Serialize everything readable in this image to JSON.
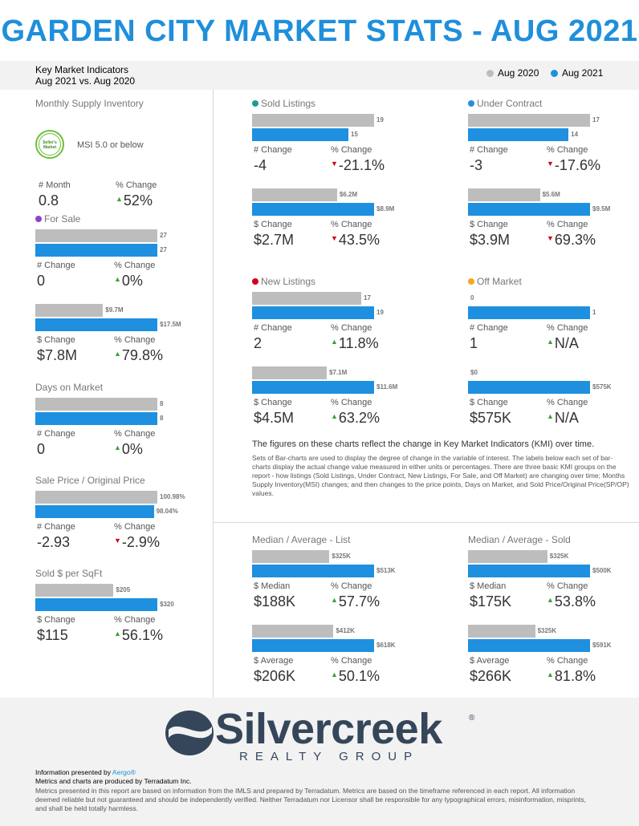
{
  "title": "GARDEN CITY MARKET STATS - AUG 2021",
  "header": {
    "line1": "Key Market Indicators",
    "line2": "Aug 2021 vs. Aug 2020"
  },
  "legend": [
    {
      "label": "Aug 2020",
      "color": "#bdbdbd"
    },
    {
      "label": "Aug 2021",
      "color": "#1e90df"
    }
  ],
  "msi": {
    "title": "Monthly Supply Inventory",
    "badge": "Seller's Market",
    "badge_text": "MSI 5.0 or below",
    "labels": [
      "# Month",
      "% Change"
    ],
    "values": [
      "0.8",
      "52%"
    ],
    "dirs": [
      "",
      "up"
    ]
  },
  "chart_data": [
    {
      "type": "bar",
      "title": "For Sale",
      "color": "#8e44c9",
      "series": [
        {
          "name": "Aug 2020",
          "value": 27
        },
        {
          "name": "Aug 2021",
          "value": 27
        }
      ],
      "value_labels": [
        "27",
        "27"
      ],
      "change_labels": [
        "# Change",
        "% Change"
      ],
      "change_values": [
        "0",
        "0%"
      ],
      "change_dirs": [
        "",
        "up"
      ]
    },
    {
      "type": "bar",
      "title": "",
      "series": [
        {
          "name": "Aug 2020",
          "value": 9.7
        },
        {
          "name": "Aug 2021",
          "value": 17.5
        }
      ],
      "value_labels": [
        "$9.7M",
        "$17.5M"
      ],
      "change_labels": [
        "$ Change",
        "% Change"
      ],
      "change_values": [
        "$7.8M",
        "79.8%"
      ],
      "change_dirs": [
        "",
        "up"
      ]
    },
    {
      "type": "bar",
      "title": "Days on Market",
      "series": [
        {
          "name": "Aug 2020",
          "value": 8
        },
        {
          "name": "Aug 2021",
          "value": 8
        }
      ],
      "value_labels": [
        "8",
        "8"
      ],
      "change_labels": [
        "# Change",
        "% Change"
      ],
      "change_values": [
        "0",
        "0%"
      ],
      "change_dirs": [
        "",
        "up"
      ]
    },
    {
      "type": "bar",
      "title": "Sale Price / Original Price",
      "series": [
        {
          "name": "Aug 2020",
          "value": 100.98
        },
        {
          "name": "Aug 2021",
          "value": 98.04
        }
      ],
      "value_labels": [
        "100.98%",
        "98.04%"
      ],
      "change_labels": [
        "# Change",
        "% Change"
      ],
      "change_values": [
        "-2.93",
        "-2.9%"
      ],
      "change_dirs": [
        "",
        "down"
      ]
    },
    {
      "type": "bar",
      "title": "Sold $ per SqFt",
      "series": [
        {
          "name": "Aug 2020",
          "value": 205
        },
        {
          "name": "Aug 2021",
          "value": 320
        }
      ],
      "value_labels": [
        "$205",
        "$320"
      ],
      "change_labels": [
        "$ Change",
        "% Change"
      ],
      "change_values": [
        "$115",
        "56.1%"
      ],
      "change_dirs": [
        "",
        "up"
      ]
    },
    {
      "type": "bar",
      "title": "Sold Listings",
      "color": "#1a9e8f",
      "series": [
        {
          "name": "Aug 2020",
          "value": 19
        },
        {
          "name": "Aug 2021",
          "value": 15
        }
      ],
      "value_labels": [
        "19",
        "15"
      ],
      "change_labels": [
        "# Change",
        "% Change"
      ],
      "change_values": [
        "-4",
        "-21.1%"
      ],
      "change_dirs": [
        "",
        "down"
      ]
    },
    {
      "type": "bar",
      "title": "",
      "series": [
        {
          "name": "Aug 2020",
          "value": 6.2
        },
        {
          "name": "Aug 2021",
          "value": 8.9
        }
      ],
      "value_labels": [
        "$6.2M",
        "$8.9M"
      ],
      "change_labels": [
        "$ Change",
        "% Change"
      ],
      "change_values": [
        "$2.7M",
        "43.5%"
      ],
      "change_dirs": [
        "",
        "down"
      ]
    },
    {
      "type": "bar",
      "title": "Under Contract",
      "color": "#1e90df",
      "series": [
        {
          "name": "Aug 2020",
          "value": 17
        },
        {
          "name": "Aug 2021",
          "value": 14
        }
      ],
      "value_labels": [
        "17",
        "14"
      ],
      "change_labels": [
        "# Change",
        "% Change"
      ],
      "change_values": [
        "-3",
        "-17.6%"
      ],
      "change_dirs": [
        "",
        "down"
      ]
    },
    {
      "type": "bar",
      "title": "",
      "series": [
        {
          "name": "Aug 2020",
          "value": 5.6
        },
        {
          "name": "Aug 2021",
          "value": 9.5
        }
      ],
      "value_labels": [
        "$5.6M",
        "$9.5M"
      ],
      "change_labels": [
        "$ Change",
        "% Change"
      ],
      "change_values": [
        "$3.9M",
        "69.3%"
      ],
      "change_dirs": [
        "",
        "down"
      ]
    },
    {
      "type": "bar",
      "title": "New Listings",
      "color": "#d0021b",
      "series": [
        {
          "name": "Aug 2020",
          "value": 17
        },
        {
          "name": "Aug 2021",
          "value": 19
        }
      ],
      "value_labels": [
        "17",
        "19"
      ],
      "change_labels": [
        "# Change",
        "% Change"
      ],
      "change_values": [
        "2",
        "11.8%"
      ],
      "change_dirs": [
        "",
        "up"
      ]
    },
    {
      "type": "bar",
      "title": "",
      "series": [
        {
          "name": "Aug 2020",
          "value": 7.1
        },
        {
          "name": "Aug 2021",
          "value": 11.6
        }
      ],
      "value_labels": [
        "$7.1M",
        "$11.6M"
      ],
      "change_labels": [
        "$ Change",
        "% Change"
      ],
      "change_values": [
        "$4.5M",
        "63.2%"
      ],
      "change_dirs": [
        "",
        "up"
      ]
    },
    {
      "type": "bar",
      "title": "Off Market",
      "color": "#f5a623",
      "series": [
        {
          "name": "Aug 2020",
          "value": 0
        },
        {
          "name": "Aug 2021",
          "value": 1
        }
      ],
      "value_labels": [
        "0",
        "1"
      ],
      "change_labels": [
        "# Change",
        "% Change"
      ],
      "change_values": [
        "1",
        "N/A"
      ],
      "change_dirs": [
        "",
        "up"
      ]
    },
    {
      "type": "bar",
      "title": "",
      "series": [
        {
          "name": "Aug 2020",
          "value": 0
        },
        {
          "name": "Aug 2021",
          "value": 575
        }
      ],
      "value_labels": [
        "$0",
        "$575K"
      ],
      "change_labels": [
        "$ Change",
        "% Change"
      ],
      "change_values": [
        "$575K",
        "N/A"
      ],
      "change_dirs": [
        "",
        "up"
      ]
    },
    {
      "type": "bar",
      "title": "Median / Average - List",
      "series": [
        {
          "name": "Aug 2020",
          "value": 325
        },
        {
          "name": "Aug 2021",
          "value": 513
        }
      ],
      "value_labels": [
        "$325K",
        "$513K"
      ],
      "change_labels": [
        "$ Median",
        "% Change"
      ],
      "change_values": [
        "$188K",
        "57.7%"
      ],
      "change_dirs": [
        "",
        "up"
      ]
    },
    {
      "type": "bar",
      "title": "",
      "series": [
        {
          "name": "Aug 2020",
          "value": 412
        },
        {
          "name": "Aug 2021",
          "value": 618
        }
      ],
      "value_labels": [
        "$412K",
        "$618K"
      ],
      "change_labels": [
        "$ Average",
        "% Change"
      ],
      "change_values": [
        "$206K",
        "50.1%"
      ],
      "change_dirs": [
        "",
        "up"
      ]
    },
    {
      "type": "bar",
      "title": "Median / Average - Sold",
      "series": [
        {
          "name": "Aug 2020",
          "value": 325
        },
        {
          "name": "Aug 2021",
          "value": 500
        }
      ],
      "value_labels": [
        "$325K",
        "$500K"
      ],
      "change_labels": [
        "$ Median",
        "% Change"
      ],
      "change_values": [
        "$175K",
        "53.8%"
      ],
      "change_dirs": [
        "",
        "up"
      ]
    },
    {
      "type": "bar",
      "title": "",
      "series": [
        {
          "name": "Aug 2020",
          "value": 325
        },
        {
          "name": "Aug 2021",
          "value": 591
        }
      ],
      "value_labels": [
        "$325K",
        "$591K"
      ],
      "change_labels": [
        "$ Average",
        "% Change"
      ],
      "change_values": [
        "$266K",
        "81.8%"
      ],
      "change_dirs": [
        "",
        "up"
      ]
    }
  ],
  "description": {
    "heading": "The figures on these charts reflect the change in Key Market Indicators (KMI) over time.",
    "body": "Sets of Bar-charts are used to display the degree of change in the variable of interest. The labels below each set of bar-charts display the actual change value measured in either units or percentages. There are three basic KMI groups on the report - how listings (Sold Listings, Under Contract, New Listings, For Sale, and Off Market) are changing over time; Months Supply Inventory(MSI) changes; and then changes to the price points, Days on Market, and Sold Price/Original Price(SP/OP) values."
  },
  "footer": {
    "brand": "Silvercreek",
    "brand_reg": "®",
    "brand_sub": "REALTY GROUP",
    "presented_prefix": "Information presented by ",
    "presented_link": "Aergo®",
    "produced": "Metrics and charts are produced by Terradatum Inc.",
    "disclaimer": "Metrics presented in this report are based on information from the IMLS and prepared by Terradatum. Metrics are based on the timeframe referenced in each report. All information deemed reliable but not guaranteed and should be independently verified. Neither Terradatum nor Licensor shall be responsible for any typographical errors, misinformation, misprints, and shall be held totally harmless."
  }
}
